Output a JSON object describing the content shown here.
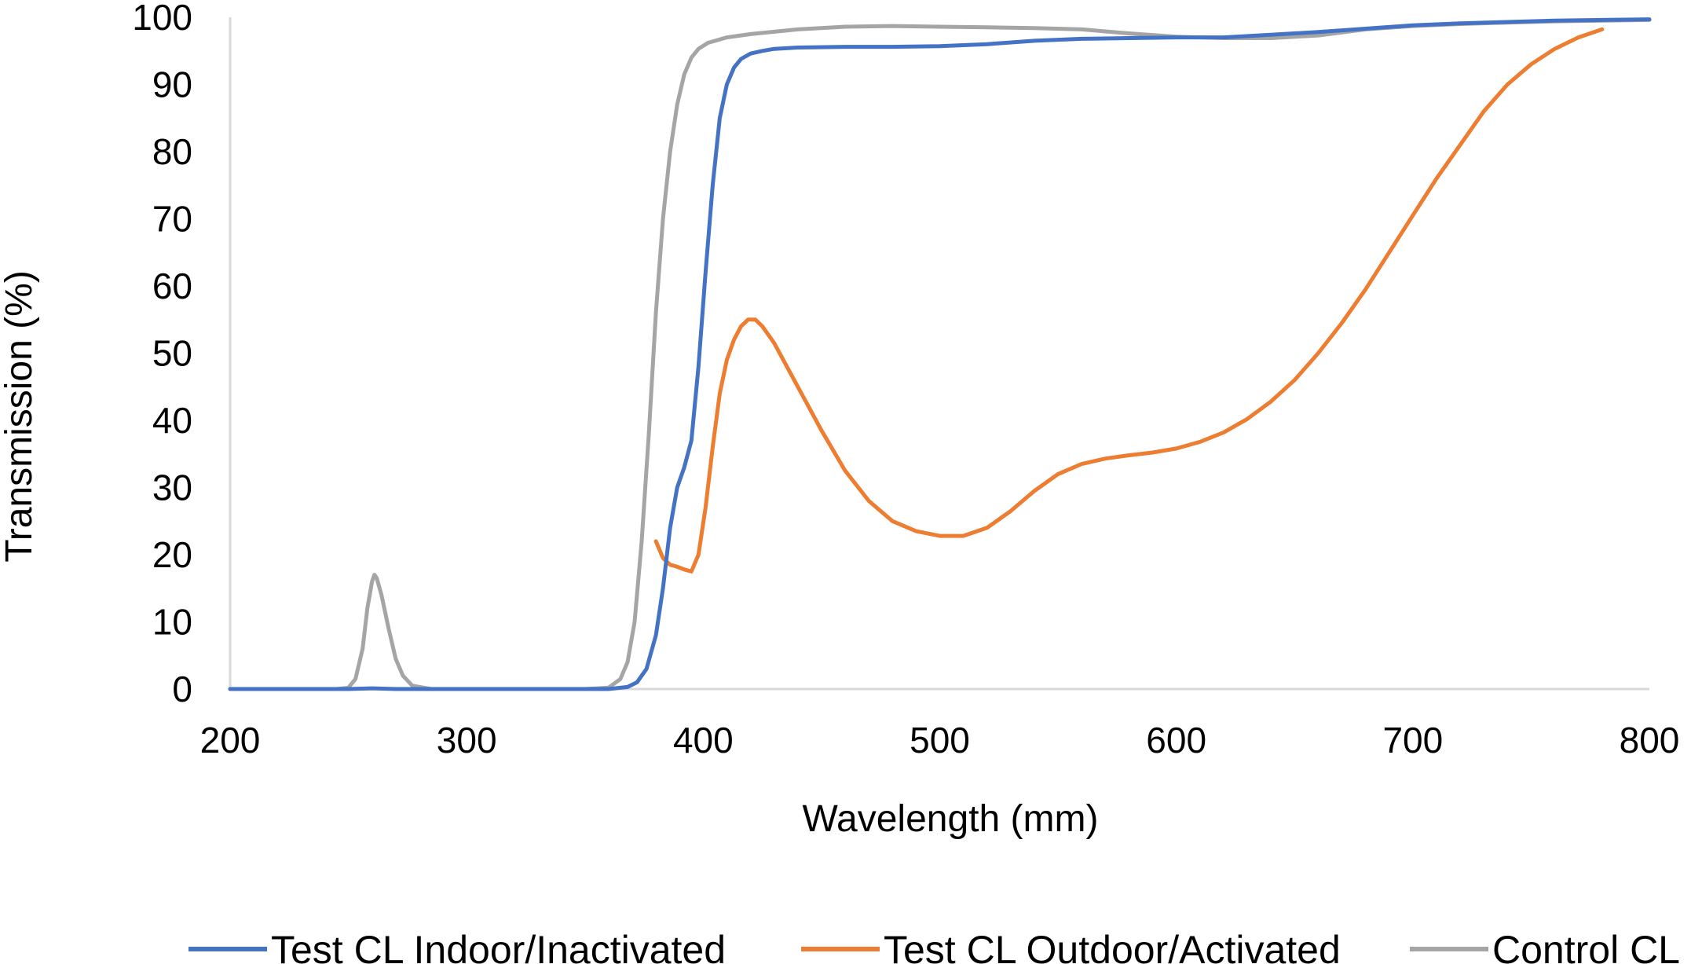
{
  "chart_data": {
    "type": "line",
    "title": "",
    "xlabel": "Wavelength (mm)",
    "ylabel": "Transmission (%)",
    "xlim": [
      200,
      800
    ],
    "ylim": [
      0,
      100
    ],
    "x_ticks": [
      200,
      300,
      400,
      500,
      600,
      700,
      800
    ],
    "y_ticks": [
      0,
      10,
      20,
      30,
      40,
      50,
      60,
      70,
      80,
      90,
      100
    ],
    "grid": false,
    "legend_position": "bottom",
    "series": [
      {
        "name": "Test CL Indoor/Inactivated",
        "color": "#4472C4",
        "points": [
          [
            200,
            0
          ],
          [
            250,
            0
          ],
          [
            260,
            0.1
          ],
          [
            270,
            0
          ],
          [
            300,
            0
          ],
          [
            350,
            0
          ],
          [
            360,
            0
          ],
          [
            368,
            0.3
          ],
          [
            372,
            1
          ],
          [
            376,
            3
          ],
          [
            380,
            8
          ],
          [
            383,
            15
          ],
          [
            386,
            24
          ],
          [
            389,
            30
          ],
          [
            392,
            33
          ],
          [
            395,
            37
          ],
          [
            398,
            48
          ],
          [
            401,
            62
          ],
          [
            404,
            75
          ],
          [
            407,
            85
          ],
          [
            410,
            90
          ],
          [
            413,
            92.5
          ],
          [
            416,
            93.8
          ],
          [
            420,
            94.6
          ],
          [
            425,
            95
          ],
          [
            430,
            95.3
          ],
          [
            440,
            95.5
          ],
          [
            460,
            95.6
          ],
          [
            480,
            95.6
          ],
          [
            500,
            95.7
          ],
          [
            520,
            96
          ],
          [
            540,
            96.5
          ],
          [
            560,
            96.8
          ],
          [
            580,
            96.9
          ],
          [
            600,
            97
          ],
          [
            620,
            97
          ],
          [
            640,
            97.4
          ],
          [
            660,
            97.8
          ],
          [
            680,
            98.3
          ],
          [
            700,
            98.8
          ],
          [
            720,
            99.1
          ],
          [
            740,
            99.3
          ],
          [
            760,
            99.5
          ],
          [
            780,
            99.6
          ],
          [
            800,
            99.7
          ]
        ]
      },
      {
        "name": "Test CL Outdoor/Activated",
        "color": "#ED7D31",
        "points": [
          [
            380,
            22
          ],
          [
            383,
            19.5
          ],
          [
            386,
            18.5
          ],
          [
            389,
            18.2
          ],
          [
            392,
            17.8
          ],
          [
            395,
            17.5
          ],
          [
            398,
            20
          ],
          [
            401,
            27
          ],
          [
            404,
            36
          ],
          [
            407,
            44
          ],
          [
            410,
            49
          ],
          [
            413,
            52
          ],
          [
            416,
            54
          ],
          [
            419,
            55
          ],
          [
            422,
            55
          ],
          [
            425,
            54
          ],
          [
            430,
            51.5
          ],
          [
            440,
            45
          ],
          [
            450,
            38.5
          ],
          [
            460,
            32.5
          ],
          [
            470,
            28
          ],
          [
            480,
            25
          ],
          [
            490,
            23.5
          ],
          [
            500,
            22.8
          ],
          [
            510,
            22.8
          ],
          [
            520,
            24
          ],
          [
            530,
            26.5
          ],
          [
            540,
            29.5
          ],
          [
            550,
            32
          ],
          [
            560,
            33.5
          ],
          [
            570,
            34.3
          ],
          [
            580,
            34.8
          ],
          [
            590,
            35.2
          ],
          [
            600,
            35.8
          ],
          [
            610,
            36.8
          ],
          [
            620,
            38.2
          ],
          [
            630,
            40.2
          ],
          [
            640,
            42.8
          ],
          [
            650,
            46
          ],
          [
            660,
            50
          ],
          [
            670,
            54.5
          ],
          [
            680,
            59.5
          ],
          [
            690,
            65
          ],
          [
            700,
            70.5
          ],
          [
            710,
            76
          ],
          [
            720,
            81
          ],
          [
            730,
            86
          ],
          [
            740,
            90
          ],
          [
            750,
            93
          ],
          [
            760,
            95.3
          ],
          [
            770,
            97
          ],
          [
            780,
            98.2
          ]
        ]
      },
      {
        "name": "Control CL",
        "color": "#A5A5A5",
        "points": [
          [
            200,
            0
          ],
          [
            245,
            0
          ],
          [
            250,
            0.2
          ],
          [
            253,
            1.5
          ],
          [
            256,
            6
          ],
          [
            258,
            12
          ],
          [
            260,
            16
          ],
          [
            261,
            17
          ],
          [
            262,
            16.5
          ],
          [
            264,
            14
          ],
          [
            267,
            9
          ],
          [
            270,
            4.5
          ],
          [
            273,
            2
          ],
          [
            277,
            0.5
          ],
          [
            285,
            0
          ],
          [
            300,
            0
          ],
          [
            350,
            0
          ],
          [
            360,
            0.2
          ],
          [
            365,
            1.5
          ],
          [
            368,
            4
          ],
          [
            371,
            10
          ],
          [
            374,
            22
          ],
          [
            377,
            38
          ],
          [
            380,
            56
          ],
          [
            383,
            70
          ],
          [
            386,
            80
          ],
          [
            389,
            87
          ],
          [
            392,
            91.5
          ],
          [
            395,
            94
          ],
          [
            398,
            95.3
          ],
          [
            402,
            96.2
          ],
          [
            410,
            97
          ],
          [
            420,
            97.5
          ],
          [
            440,
            98.2
          ],
          [
            460,
            98.6
          ],
          [
            480,
            98.7
          ],
          [
            500,
            98.6
          ],
          [
            520,
            98.5
          ],
          [
            540,
            98.4
          ],
          [
            560,
            98.2
          ],
          [
            580,
            97.6
          ],
          [
            600,
            97.1
          ],
          [
            620,
            96.9
          ],
          [
            640,
            96.9
          ],
          [
            660,
            97.3
          ],
          [
            680,
            98.2
          ],
          [
            700,
            98.7
          ],
          [
            720,
            99
          ],
          [
            740,
            99.2
          ],
          [
            760,
            99.4
          ],
          [
            780,
            99.5
          ],
          [
            800,
            99.6
          ]
        ]
      }
    ]
  }
}
